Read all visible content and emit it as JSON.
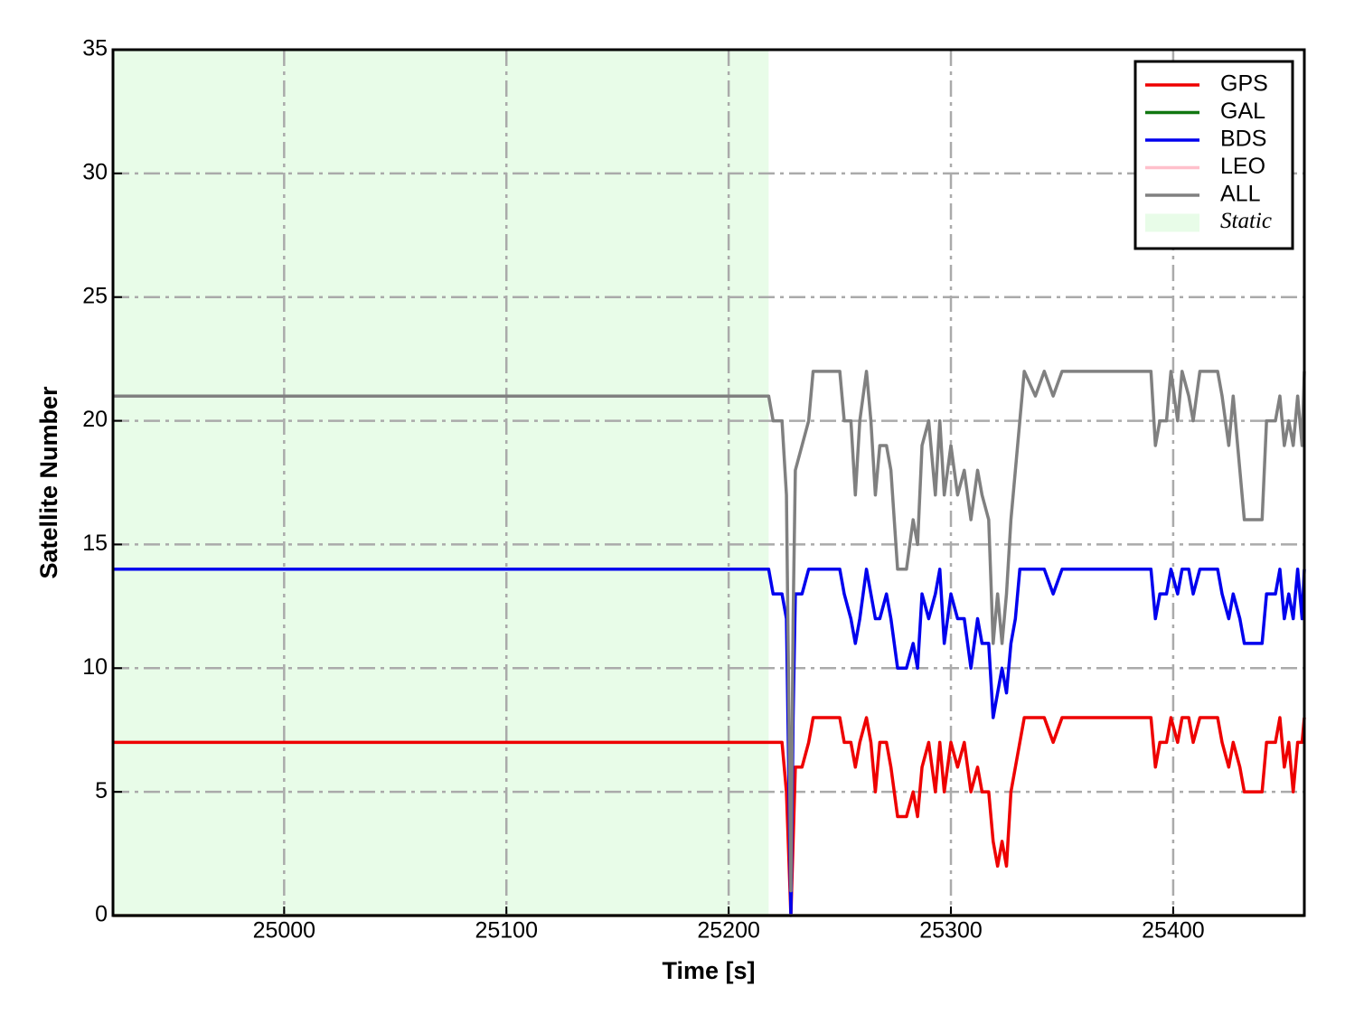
{
  "chart_data": {
    "type": "line",
    "xlabel": "Time [s]",
    "ylabel": "Satellite Number",
    "xlim": [
      24923,
      25459
    ],
    "ylim": [
      0,
      35
    ],
    "xticks": [
      25000,
      25100,
      25200,
      25300,
      25400
    ],
    "yticks": [
      0,
      5,
      10,
      15,
      20,
      25,
      30,
      35
    ],
    "grid": true,
    "legend": "upper right",
    "shade": {
      "label": "Static",
      "xlim": [
        24923,
        25218
      ],
      "color": "#e8fce8"
    },
    "x": [
      24923,
      25218,
      25220,
      25224,
      25226,
      25228,
      25229,
      25230,
      25233,
      25236,
      25238,
      25250,
      25252,
      25255,
      25257,
      25259,
      25262,
      25264,
      25266,
      25268,
      25271,
      25273,
      25276,
      25280,
      25283,
      25285,
      25287,
      25290,
      25293,
      25295,
      25297,
      25300,
      25303,
      25306,
      25309,
      25312,
      25314,
      25317,
      25319,
      25321,
      25323,
      25325,
      25327,
      25329,
      25331,
      25333,
      25338,
      25342,
      25346,
      25350,
      25390,
      25392,
      25394,
      25397,
      25399,
      25402,
      25404,
      25407,
      25409,
      25412,
      25420,
      25422,
      25425,
      25427,
      25430,
      25432,
      25440,
      25442,
      25446,
      25448,
      25450,
      25452,
      25454,
      25456,
      25458,
      25459
    ],
    "series": [
      {
        "name": "GPS",
        "color": "#ee0000",
        "values": [
          7,
          7,
          7,
          7,
          5,
          0,
          3,
          6,
          6,
          7,
          8,
          8,
          7,
          7,
          6,
          7,
          8,
          7,
          5,
          7,
          7,
          6,
          4,
          4,
          5,
          4,
          6,
          7,
          5,
          7,
          5,
          7,
          6,
          7,
          5,
          6,
          5,
          5,
          3,
          2,
          3,
          2,
          5,
          6,
          7,
          8,
          8,
          8,
          7,
          8,
          8,
          6,
          7,
          7,
          8,
          7,
          8,
          8,
          7,
          8,
          8,
          7,
          6,
          7,
          6,
          5,
          5,
          7,
          7,
          8,
          6,
          7,
          5,
          7,
          7,
          8
        ]
      },
      {
        "name": "GAL",
        "color": "#117711",
        "values": [
          0,
          0,
          0,
          0,
          0,
          0,
          0,
          0,
          0,
          0,
          0,
          0,
          0,
          0,
          0,
          0,
          0,
          0,
          0,
          0,
          0,
          0,
          0,
          0,
          0,
          0,
          0,
          0,
          0,
          0,
          0,
          0,
          0,
          0,
          0,
          0,
          0,
          0,
          0,
          0,
          0,
          0,
          0,
          0,
          0,
          0,
          0,
          0,
          0,
          0,
          0,
          0,
          0,
          0,
          0,
          0,
          0,
          0,
          0,
          0,
          0,
          0,
          0,
          0,
          0,
          0,
          0,
          0,
          0,
          0,
          0,
          0,
          0,
          0,
          0,
          0
        ]
      },
      {
        "name": "BDS",
        "color": "#0000ee",
        "values": [
          14,
          14,
          13,
          13,
          12,
          0,
          8,
          13,
          13,
          14,
          14,
          14,
          13,
          12,
          11,
          12,
          14,
          13,
          12,
          12,
          13,
          12,
          10,
          10,
          11,
          10,
          13,
          12,
          13,
          14,
          11,
          13,
          12,
          12,
          10,
          12,
          11,
          11,
          8,
          9,
          10,
          9,
          11,
          12,
          14,
          14,
          14,
          14,
          13,
          14,
          14,
          12,
          13,
          13,
          14,
          13,
          14,
          14,
          13,
          14,
          14,
          13,
          12,
          13,
          12,
          11,
          11,
          13,
          13,
          14,
          12,
          13,
          12,
          14,
          12,
          14
        ]
      },
      {
        "name": "LEO",
        "color": "#ffc0cb",
        "values": [
          0,
          0,
          0,
          0,
          0,
          0,
          0,
          0,
          0,
          0,
          0,
          0,
          0,
          0,
          0,
          0,
          0,
          0,
          0,
          0,
          0,
          0,
          0,
          0,
          0,
          0,
          0,
          0,
          0,
          0,
          0,
          0,
          0,
          0,
          0,
          0,
          0,
          0,
          0,
          0,
          0,
          0,
          0,
          0,
          0,
          0,
          0,
          0,
          0,
          0,
          0,
          0,
          0,
          0,
          0,
          0,
          0,
          0,
          0,
          0,
          0,
          0,
          0,
          0,
          0,
          0,
          0,
          0,
          0,
          0,
          0,
          0,
          0,
          0,
          0,
          0
        ]
      },
      {
        "name": "ALL",
        "color": "#808080",
        "values": [
          21,
          21,
          20,
          20,
          17,
          1,
          12,
          18,
          19,
          20,
          22,
          22,
          20,
          20,
          17,
          20,
          22,
          20,
          17,
          19,
          19,
          18,
          14,
          14,
          16,
          15,
          19,
          20,
          17,
          20,
          17,
          19,
          17,
          18,
          16,
          18,
          17,
          16,
          11,
          13,
          11,
          13,
          16,
          18,
          20,
          22,
          21,
          22,
          21,
          22,
          22,
          19,
          20,
          20,
          22,
          20,
          22,
          21,
          20,
          22,
          22,
          21,
          19,
          21,
          18,
          16,
          16,
          20,
          20,
          21,
          19,
          20,
          19,
          21,
          19,
          22
        ]
      }
    ]
  }
}
